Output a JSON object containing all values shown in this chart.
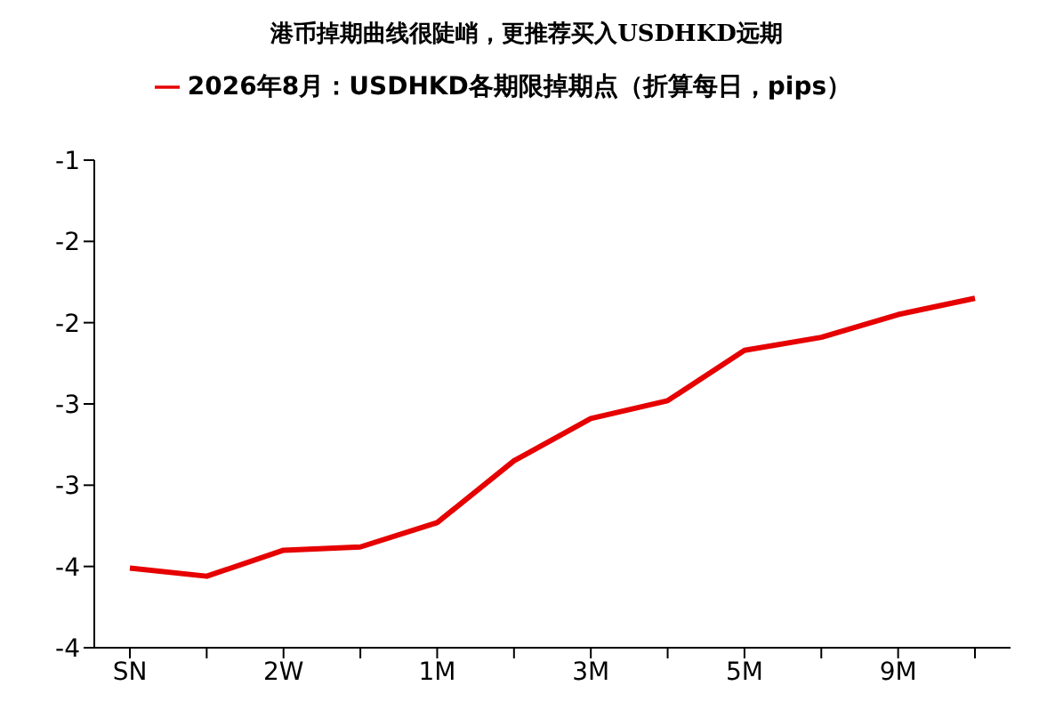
{
  "chart_data": {
    "type": "line",
    "title": "港币掉期曲线很陡峭，更推荐买入USDHKD远期",
    "categories": [
      "SN",
      null,
      "2W",
      null,
      "1M",
      null,
      "3M",
      null,
      "5M",
      null,
      "9M",
      null
    ],
    "series": [
      {
        "name": "2026年8月：USDHKD各期限掉期点（折算每日，pips）",
        "color": "#e60000",
        "values": [
          -3.51,
          -3.56,
          -3.4,
          -3.38,
          -3.23,
          -2.85,
          -2.59,
          -2.48,
          -2.17,
          -2.09,
          -1.95,
          -1.85
        ]
      }
    ],
    "ylim": [
      -4,
      -1
    ],
    "yticks": [
      -1,
      {
        "value": -1.5,
        "label": "-2"
      },
      -2,
      {
        "value": -2.5,
        "label": "-3"
      },
      -3,
      {
        "value": -3.5,
        "label": "-4"
      },
      -4
    ],
    "grid": false,
    "legend": "top",
    "marker": "none",
    "line_style": "solid"
  }
}
